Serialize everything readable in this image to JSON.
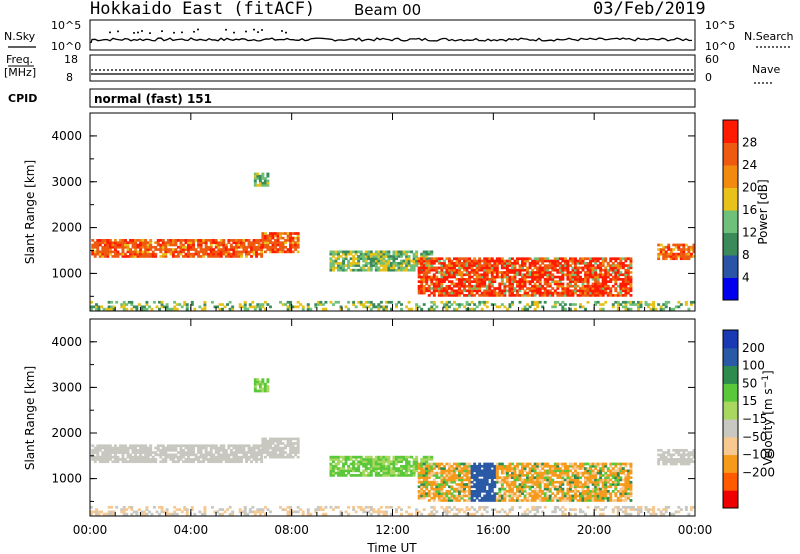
{
  "header": {
    "station": "Hokkaido East (fitACF)",
    "beam": "Beam 00",
    "date": "03/Feb/2019"
  },
  "status_panels": {
    "nsky_label": "N.Sky",
    "nsky_top": "10^5",
    "nsky_bottom": "10^0",
    "nsearch_label": "N.Search",
    "nsearch_top": "10^5",
    "nsearch_bottom": "10^0",
    "freq_label_line1": "Freq.",
    "freq_label_line2": "[MHz]",
    "freq_top": "18",
    "freq_bottom": "8",
    "nave_label": "Nave",
    "nave_top": "60",
    "nave_bottom": "0",
    "cpid_label": "CPID",
    "cpid_value": "normal (fast) 151"
  },
  "colors": {
    "power": [
      "#0000ee",
      "#2a55a6",
      "#3a8a5a",
      "#6fc07a",
      "#e8c21a",
      "#f28a10",
      "#ee5a10",
      "#ff1a00"
    ],
    "velocity": [
      "#ee0000",
      "#ff5a00",
      "#f59a1a",
      "#f7c890",
      "#c8c8c0",
      "#a8d860",
      "#5ac83a",
      "#2e8b4e",
      "#2a5aa6",
      "#1a3ab4"
    ]
  },
  "chart_data": [
    {
      "type": "heatmap",
      "name": "power",
      "xlabel": "",
      "ylabel": "Slant Range [km]",
      "yticks": [
        "1000",
        "2000",
        "3000",
        "4000"
      ],
      "ylim": [
        180,
        4500
      ],
      "xlim": [
        0,
        24
      ],
      "colorbar_label": "Power [dB]",
      "colorbar_ticks": [
        "4",
        "8",
        "12",
        "16",
        "20",
        "24",
        "28"
      ],
      "colorbar_range": [
        0,
        30
      ]
    },
    {
      "type": "heatmap",
      "name": "velocity",
      "xlabel": "Time UT",
      "ylabel": "Slant Range [km]",
      "xticks": [
        "00:00",
        "04:00",
        "08:00",
        "12:00",
        "16:00",
        "20:00",
        "00:00"
      ],
      "xlim": [
        0,
        24
      ],
      "yticks": [
        "1000",
        "2000",
        "3000",
        "4000"
      ],
      "ylim": [
        180,
        4500
      ],
      "colorbar_label": "Velocity [m s^-1]",
      "colorbar_ticks": [
        "200",
        "100",
        "50",
        "15",
        "−15",
        "−50",
        "−100",
        "−200"
      ]
    }
  ]
}
